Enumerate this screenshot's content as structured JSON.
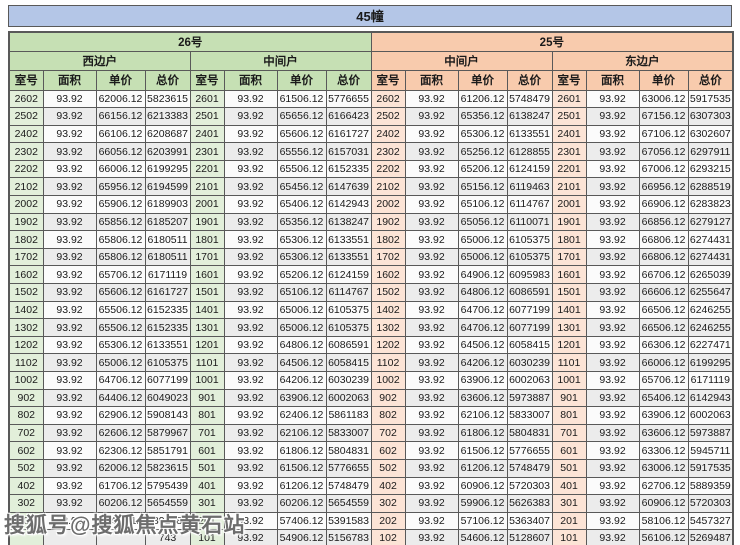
{
  "title": "45幢",
  "watermark": "搜狐号@搜狐焦点黄石站",
  "column_headers": [
    "室号",
    "面积",
    "单价",
    "总价"
  ],
  "colors": {
    "title_bar": "#b4c6e7",
    "green_header": "#c6e0b4",
    "green_room_cell": "#e2efda",
    "orange_header": "#f8cbad",
    "orange_room_cell": "#fce4d6",
    "row_stripe_dark": "#ececec",
    "row_stripe_light": "#fbfbfb",
    "border": "#595959"
  },
  "buildings": [
    {
      "label": "26号",
      "theme": "green",
      "sections": [
        {
          "label": "西边户",
          "rows": [
            [
              "2602",
              "93.92",
              "62006.12",
              "5823615"
            ],
            [
              "2502",
              "93.92",
              "66156.12",
              "6213383"
            ],
            [
              "2402",
              "93.92",
              "66106.12",
              "6208687"
            ],
            [
              "2302",
              "93.92",
              "66056.12",
              "6203991"
            ],
            [
              "2202",
              "93.92",
              "66006.12",
              "6199295"
            ],
            [
              "2102",
              "93.92",
              "65956.12",
              "6194599"
            ],
            [
              "2002",
              "93.92",
              "65906.12",
              "6189903"
            ],
            [
              "1902",
              "93.92",
              "65856.12",
              "6185207"
            ],
            [
              "1802",
              "93.92",
              "65806.12",
              "6180511"
            ],
            [
              "1702",
              "93.92",
              "65806.12",
              "6180511"
            ],
            [
              "1602",
              "93.92",
              "65706.12",
              "6171119"
            ],
            [
              "1502",
              "93.92",
              "65606.12",
              "6161727"
            ],
            [
              "1402",
              "93.92",
              "65506.12",
              "6152335"
            ],
            [
              "1302",
              "93.92",
              "65506.12",
              "6152335"
            ],
            [
              "1202",
              "93.92",
              "65306.12",
              "6133551"
            ],
            [
              "1102",
              "93.92",
              "65006.12",
              "6105375"
            ],
            [
              "1002",
              "93.92",
              "64706.12",
              "6077199"
            ],
            [
              "902",
              "93.92",
              "64406.12",
              "6049023"
            ],
            [
              "802",
              "93.92",
              "62906.12",
              "5908143"
            ],
            [
              "702",
              "93.92",
              "62606.12",
              "5879967"
            ],
            [
              "602",
              "93.92",
              "62306.12",
              "5851791"
            ],
            [
              "502",
              "93.92",
              "62006.12",
              "5823615"
            ],
            [
              "402",
              "93.92",
              "61706.12",
              "5795439"
            ],
            [
              "302",
              "93.92",
              "60206.12",
              "5654559"
            ],
            [
              "202",
              "93.92",
              "57406.12",
              "5391583"
            ],
            [
              "",
              "",
              "",
              "743"
            ]
          ]
        },
        {
          "label": "中间户",
          "rows": [
            [
              "2601",
              "93.92",
              "61506.12",
              "5776655"
            ],
            [
              "2501",
              "93.92",
              "65656.12",
              "6166423"
            ],
            [
              "2401",
              "93.92",
              "65606.12",
              "6161727"
            ],
            [
              "2301",
              "93.92",
              "65556.12",
              "6157031"
            ],
            [
              "2201",
              "93.92",
              "65506.12",
              "6152335"
            ],
            [
              "2101",
              "93.92",
              "65456.12",
              "6147639"
            ],
            [
              "2001",
              "93.92",
              "65406.12",
              "6142943"
            ],
            [
              "1901",
              "93.92",
              "65356.12",
              "6138247"
            ],
            [
              "1801",
              "93.92",
              "65306.12",
              "6133551"
            ],
            [
              "1701",
              "93.92",
              "65306.12",
              "6133551"
            ],
            [
              "1601",
              "93.92",
              "65206.12",
              "6124159"
            ],
            [
              "1501",
              "93.92",
              "65106.12",
              "6114767"
            ],
            [
              "1401",
              "93.92",
              "65006.12",
              "6105375"
            ],
            [
              "1301",
              "93.92",
              "65006.12",
              "6105375"
            ],
            [
              "1201",
              "93.92",
              "64806.12",
              "6086591"
            ],
            [
              "1101",
              "93.92",
              "64506.12",
              "6058415"
            ],
            [
              "1001",
              "93.92",
              "64206.12",
              "6030239"
            ],
            [
              "901",
              "93.92",
              "63906.12",
              "6002063"
            ],
            [
              "801",
              "93.92",
              "62406.12",
              "5861183"
            ],
            [
              "701",
              "93.92",
              "62106.12",
              "5833007"
            ],
            [
              "601",
              "93.92",
              "61806.12",
              "5804831"
            ],
            [
              "501",
              "93.92",
              "61506.12",
              "5776655"
            ],
            [
              "401",
              "93.92",
              "61206.12",
              "5748479"
            ],
            [
              "301",
              "93.92",
              "60206.12",
              "5654559"
            ],
            [
              "201",
              "93.92",
              "57406.12",
              "5391583"
            ],
            [
              "101",
              "93.92",
              "54906.12",
              "5156783"
            ]
          ]
        }
      ]
    },
    {
      "label": "25号",
      "theme": "orange",
      "sections": [
        {
          "label": "中间户",
          "rows": [
            [
              "2602",
              "93.92",
              "61206.12",
              "5748479"
            ],
            [
              "2502",
              "93.92",
              "65356.12",
              "6138247"
            ],
            [
              "2402",
              "93.92",
              "65306.12",
              "6133551"
            ],
            [
              "2302",
              "93.92",
              "65256.12",
              "6128855"
            ],
            [
              "2202",
              "93.92",
              "65206.12",
              "6124159"
            ],
            [
              "2102",
              "93.92",
              "65156.12",
              "6119463"
            ],
            [
              "2002",
              "93.92",
              "65106.12",
              "6114767"
            ],
            [
              "1902",
              "93.92",
              "65056.12",
              "6110071"
            ],
            [
              "1802",
              "93.92",
              "65006.12",
              "6105375"
            ],
            [
              "1702",
              "93.92",
              "65006.12",
              "6105375"
            ],
            [
              "1602",
              "93.92",
              "64906.12",
              "6095983"
            ],
            [
              "1502",
              "93.92",
              "64806.12",
              "6086591"
            ],
            [
              "1402",
              "93.92",
              "64706.12",
              "6077199"
            ],
            [
              "1302",
              "93.92",
              "64706.12",
              "6077199"
            ],
            [
              "1202",
              "93.92",
              "64506.12",
              "6058415"
            ],
            [
              "1102",
              "93.92",
              "64206.12",
              "6030239"
            ],
            [
              "1002",
              "93.92",
              "63906.12",
              "6002063"
            ],
            [
              "902",
              "93.92",
              "63606.12",
              "5973887"
            ],
            [
              "802",
              "93.92",
              "62106.12",
              "5833007"
            ],
            [
              "702",
              "93.92",
              "61806.12",
              "5804831"
            ],
            [
              "602",
              "93.92",
              "61506.12",
              "5776655"
            ],
            [
              "502",
              "93.92",
              "61206.12",
              "5748479"
            ],
            [
              "402",
              "93.92",
              "60906.12",
              "5720303"
            ],
            [
              "302",
              "93.92",
              "59906.12",
              "5626383"
            ],
            [
              "202",
              "93.92",
              "57106.12",
              "5363407"
            ],
            [
              "102",
              "93.92",
              "54606.12",
              "5128607"
            ]
          ]
        },
        {
          "label": "东边户",
          "rows": [
            [
              "2601",
              "93.92",
              "63006.12",
              "5917535"
            ],
            [
              "2501",
              "93.92",
              "67156.12",
              "6307303"
            ],
            [
              "2401",
              "93.92",
              "67106.12",
              "6302607"
            ],
            [
              "2301",
              "93.92",
              "67056.12",
              "6297911"
            ],
            [
              "2201",
              "93.92",
              "67006.12",
              "6293215"
            ],
            [
              "2101",
              "93.92",
              "66956.12",
              "6288519"
            ],
            [
              "2001",
              "93.92",
              "66906.12",
              "6283823"
            ],
            [
              "1901",
              "93.92",
              "66856.12",
              "6279127"
            ],
            [
              "1801",
              "93.92",
              "66806.12",
              "6274431"
            ],
            [
              "1701",
              "93.92",
              "66806.12",
              "6274431"
            ],
            [
              "1601",
              "93.92",
              "66706.12",
              "6265039"
            ],
            [
              "1501",
              "93.92",
              "66606.12",
              "6255647"
            ],
            [
              "1401",
              "93.92",
              "66506.12",
              "6246255"
            ],
            [
              "1301",
              "93.92",
              "66506.12",
              "6246255"
            ],
            [
              "1201",
              "93.92",
              "66306.12",
              "6227471"
            ],
            [
              "1101",
              "93.92",
              "66006.12",
              "6199295"
            ],
            [
              "1001",
              "93.92",
              "65706.12",
              "6171119"
            ],
            [
              "901",
              "93.92",
              "65406.12",
              "6142943"
            ],
            [
              "801",
              "93.92",
              "63906.12",
              "6002063"
            ],
            [
              "701",
              "93.92",
              "63606.12",
              "5973887"
            ],
            [
              "601",
              "93.92",
              "63306.12",
              "5945711"
            ],
            [
              "501",
              "93.92",
              "63006.12",
              "5917535"
            ],
            [
              "401",
              "93.92",
              "62706.12",
              "5889359"
            ],
            [
              "301",
              "93.92",
              "60906.12",
              "5720303"
            ],
            [
              "201",
              "93.92",
              "58106.12",
              "5457327"
            ],
            [
              "101",
              "93.92",
              "56106.12",
              "5269487"
            ]
          ]
        }
      ]
    }
  ]
}
